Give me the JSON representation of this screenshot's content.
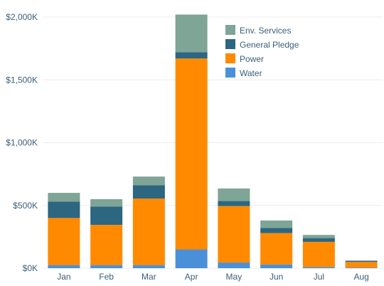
{
  "chart_data": {
    "type": "bar",
    "stacked": true,
    "categories": [
      "Jan",
      "Feb",
      "Mar",
      "Apr",
      "May",
      "Jun",
      "Jul",
      "Aug"
    ],
    "series": [
      {
        "name": "Water",
        "color": "#4a90d9",
        "values": [
          25,
          25,
          25,
          150,
          45,
          30,
          10,
          5
        ]
      },
      {
        "name": "Power",
        "color": "#ff8a00",
        "values": [
          375,
          320,
          530,
          1520,
          450,
          250,
          200,
          45
        ]
      },
      {
        "name": "General Pledge",
        "color": "#2d6680",
        "values": [
          130,
          145,
          105,
          50,
          40,
          40,
          30,
          10
        ]
      },
      {
        "name": "Env. Services",
        "color": "#7ea596",
        "values": [
          70,
          60,
          70,
          300,
          100,
          60,
          25,
          0
        ]
      }
    ],
    "legend_order": [
      "Env. Services",
      "General Pledge",
      "Power",
      "Water"
    ],
    "legend_position": "top-right",
    "y_ticks": [
      0,
      500,
      1000,
      1500,
      2000
    ],
    "y_tick_labels": [
      "$0K",
      "$500K",
      "$1,000K",
      "$1,500K",
      "$2,000K"
    ],
    "ylim": [
      0,
      2000
    ],
    "grid": true,
    "title": "",
    "xlabel": "",
    "ylabel": ""
  }
}
